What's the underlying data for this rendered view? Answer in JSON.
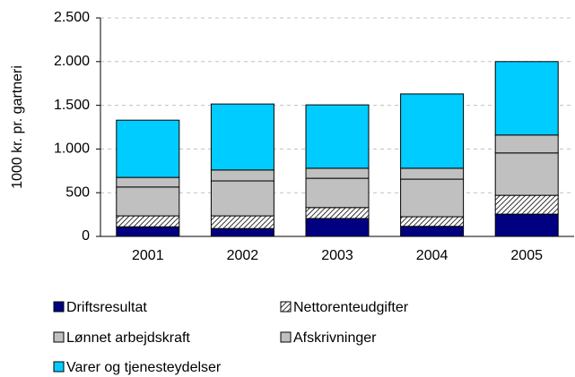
{
  "chart_data": {
    "type": "stacked_bar",
    "y_label": "1000 kr. pr. gartneri",
    "categories": [
      "2001",
      "2002",
      "2003",
      "2004",
      "2005"
    ],
    "series": [
      {
        "name": "Driftsresultat",
        "color": "#000080",
        "values": [
          110,
          90,
          205,
          115,
          255
        ]
      },
      {
        "name": "Nettorenteudgifter",
        "color": "#ffffff",
        "pattern": "hatch",
        "values": [
          125,
          145,
          125,
          110,
          215
        ]
      },
      {
        "name": "Lønnet arbejdskraft",
        "color": "#c0c0c0",
        "values": [
          330,
          400,
          335,
          430,
          485
        ]
      },
      {
        "name": "Afskrivninger",
        "color": "#c0c0c0",
        "values": [
          110,
          125,
          115,
          125,
          205
        ]
      },
      {
        "name": "Varer og tjenesteydelser",
        "color": "#00ccff",
        "values": [
          655,
          755,
          725,
          850,
          840
        ]
      }
    ],
    "ylim": [
      0,
      2500
    ],
    "yticks": [
      0,
      500,
      {
        "value": 1000,
        "label": "1.000"
      },
      {
        "value": 1500,
        "label": "1.500"
      },
      {
        "value": 2000,
        "label": "2.000"
      },
      {
        "value": 2500,
        "label": "2.500"
      }
    ],
    "grid": true
  }
}
